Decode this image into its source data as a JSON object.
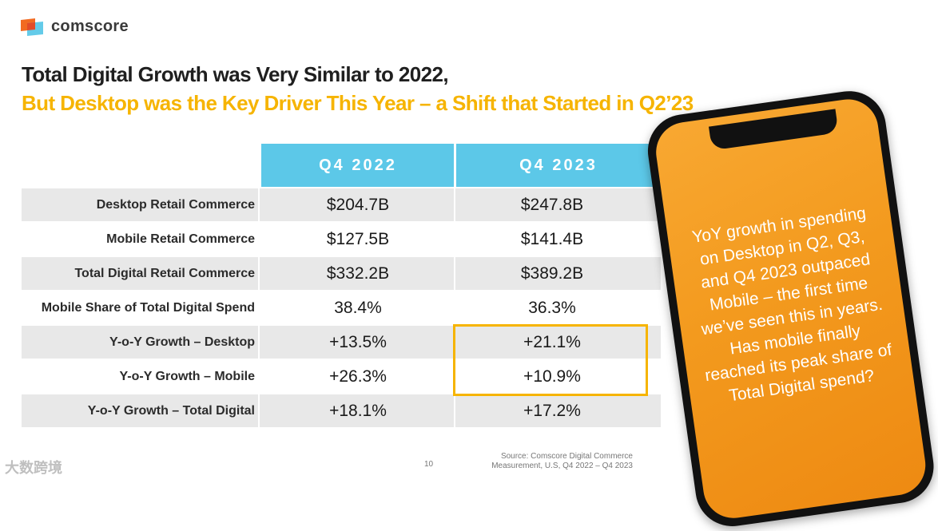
{
  "brand": {
    "name": "comscore",
    "colors": {
      "blue": "#5cc8e8",
      "orange": "#f26a21",
      "yellow": "#f6b400"
    }
  },
  "title": {
    "line1": "Total Digital Growth was Very Similar to 2022,",
    "line2": "But Desktop was the Key Driver This Year – a Shift that Started in Q2’23"
  },
  "table": {
    "columns": [
      "Q4 2022",
      "Q4 2023"
    ],
    "rows": [
      {
        "label": "Desktop Retail Commerce",
        "q4_2022": "$204.7B",
        "q4_2023": "$247.8B"
      },
      {
        "label": "Mobile Retail Commerce",
        "q4_2022": "$127.5B",
        "q4_2023": "$141.4B"
      },
      {
        "label": "Total Digital Retail Commerce",
        "q4_2022": "$332.2B",
        "q4_2023": "$389.2B"
      },
      {
        "label": "Mobile Share of Total Digital Spend",
        "q4_2022": "38.4%",
        "q4_2023": "36.3%"
      },
      {
        "label": "Y-o-Y Growth – Desktop",
        "q4_2022": "+13.5%",
        "q4_2023": "+21.1%"
      },
      {
        "label": "Y-o-Y Growth – Mobile",
        "q4_2022": "+26.3%",
        "q4_2023": "+10.9%"
      },
      {
        "label": "Y-o-Y Growth – Total Digital",
        "q4_2022": "+18.1%",
        "q4_2023": "+17.2%"
      }
    ]
  },
  "callout": "YoY growth in spending on Desktop in Q2, Q3, and Q4 2023 outpaced Mobile – the first time we’ve seen this in years. Has mobile finally reached its peak share of Total Digital spend?",
  "footer": {
    "page_number": "10",
    "source_line1": "Source: Comscore Digital Commerce",
    "source_line2": "Measurement, U.S, Q4 2022 – Q4 2023"
  },
  "watermark": "大数跨境"
}
